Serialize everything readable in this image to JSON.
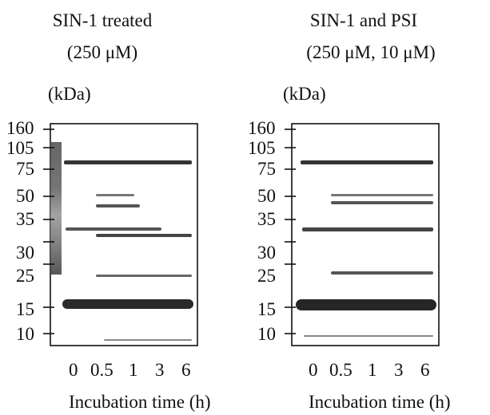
{
  "figure": {
    "panels": [
      {
        "title_line1": "SIN-1 treated",
        "title_line2": "(250 μM)",
        "unit_label": "(kDa)",
        "markers": [
          "160",
          "105",
          "75",
          "50",
          "35",
          "30",
          "25",
          "15",
          "10"
        ],
        "lanes": [
          "0",
          "0.5",
          "1",
          "3",
          "6"
        ],
        "x_axis_title": "Incubation time (h)"
      },
      {
        "title_line1": "SIN-1 and PSI",
        "title_line2": "(250 μM,  10 μM)",
        "unit_label": "(kDa)",
        "markers": [
          "160",
          "105",
          "75",
          "50",
          "35",
          "30",
          "25",
          "15",
          "10"
        ],
        "lanes": [
          "0",
          "0.5",
          "1",
          "3",
          "6"
        ],
        "x_axis_title": "Incubation time (h)"
      }
    ]
  }
}
